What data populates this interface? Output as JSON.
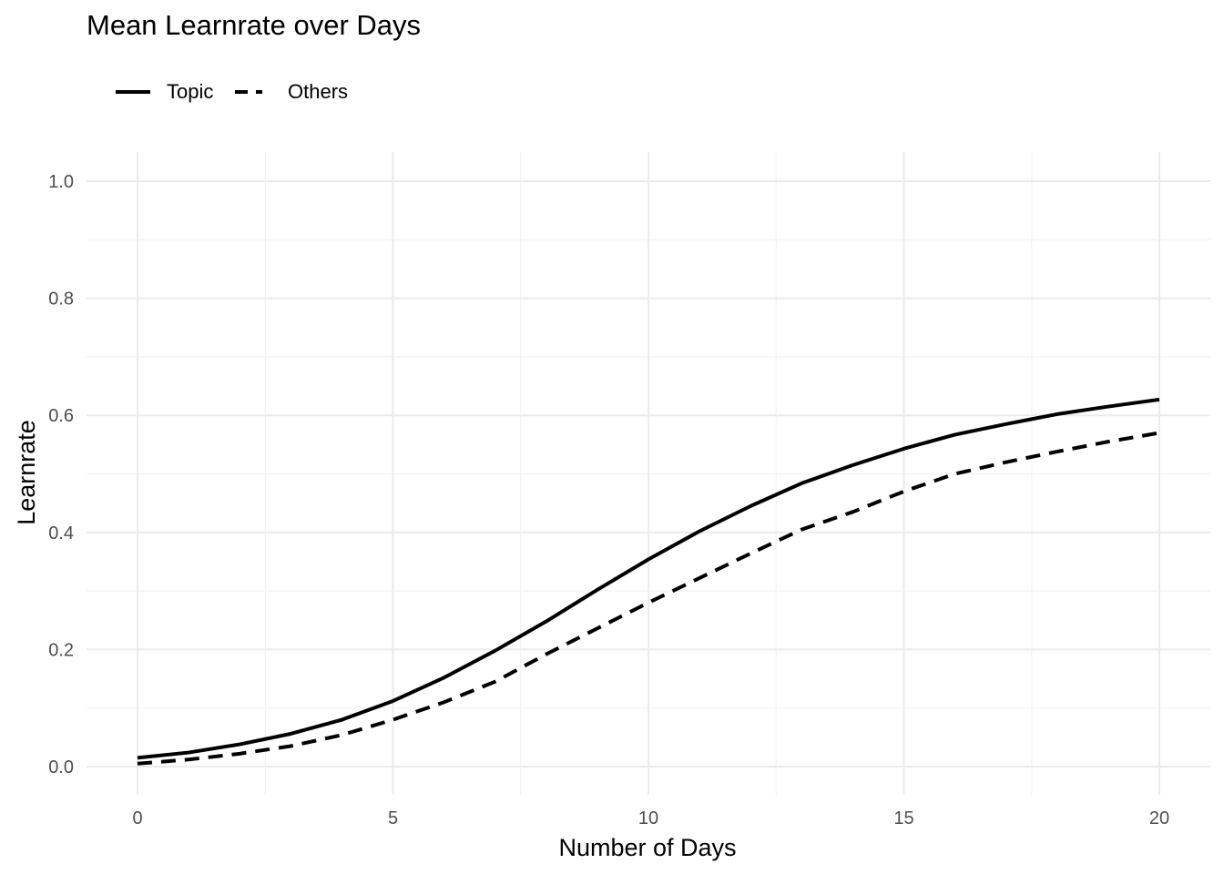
{
  "chart_data": {
    "type": "line",
    "title": "Mean Learnrate over Days",
    "xlabel": "Number of Days",
    "ylabel": "Learnrate",
    "xlim": [
      0,
      20
    ],
    "ylim": [
      0,
      1
    ],
    "x_ticks": [
      "0",
      "5",
      "10",
      "15",
      "20"
    ],
    "y_ticks": [
      "0.0",
      "0.2",
      "0.4",
      "0.6",
      "0.8",
      "1.0"
    ],
    "grid": true,
    "legend_position": "top-left",
    "series": [
      {
        "name": "Topic",
        "line_style": "solid",
        "color": "#000000",
        "x": [
          0,
          1,
          2,
          3,
          4,
          5,
          6,
          7,
          8,
          9,
          10,
          11,
          12,
          13,
          14,
          15,
          16,
          17,
          18,
          19,
          20
        ],
        "values": [
          0.015,
          0.024,
          0.038,
          0.056,
          0.08,
          0.112,
          0.152,
          0.198,
          0.248,
          0.302,
          0.354,
          0.402,
          0.445,
          0.484,
          0.515,
          0.543,
          0.567,
          0.585,
          0.602,
          0.615,
          0.627
        ]
      },
      {
        "name": "Others",
        "line_style": "dashed",
        "color": "#000000",
        "x": [
          0,
          1,
          2,
          3,
          4,
          5,
          6,
          7,
          8,
          9,
          10,
          11,
          12,
          13,
          14,
          15,
          16,
          17,
          18,
          19,
          20
        ],
        "values": [
          0.005,
          0.012,
          0.022,
          0.035,
          0.054,
          0.08,
          0.11,
          0.145,
          0.192,
          0.236,
          0.28,
          0.322,
          0.364,
          0.405,
          0.435,
          0.47,
          0.5,
          0.52,
          0.538,
          0.555,
          0.57
        ]
      }
    ]
  }
}
